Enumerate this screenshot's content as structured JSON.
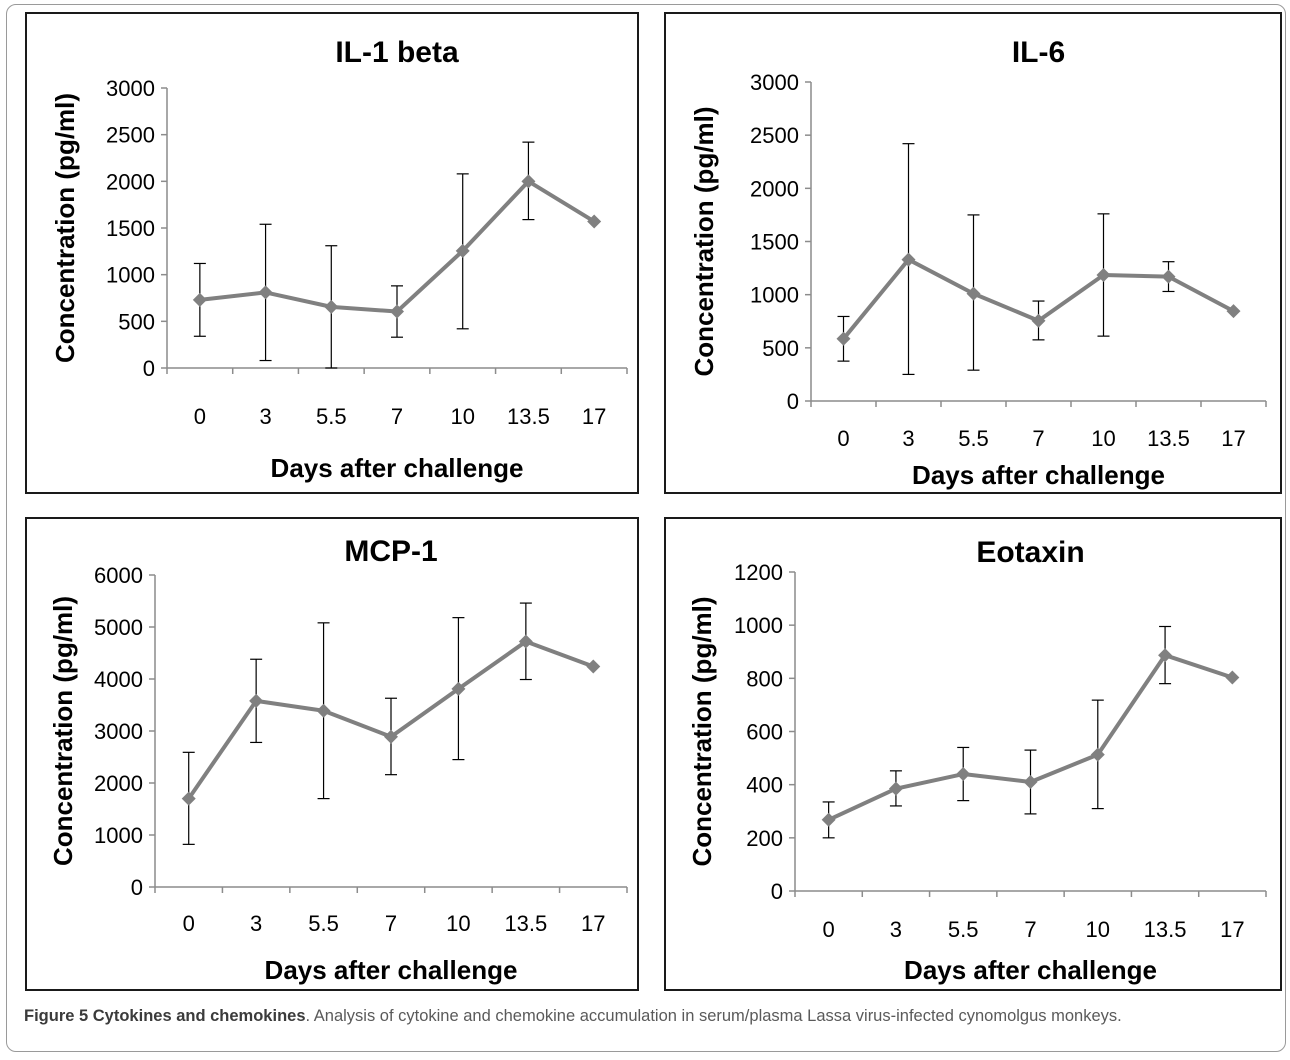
{
  "chart_data": [
    {
      "type": "line",
      "title": "IL-1 beta",
      "xlabel": "Days after challenge",
      "ylabel": "Concentration (pg/ml)",
      "categories": [
        "0",
        "3",
        "5.5",
        "7",
        "10",
        "13.5",
        "17"
      ],
      "ylim": [
        0,
        3000
      ],
      "yticks": [
        0,
        500,
        1000,
        1500,
        2000,
        2500,
        3000
      ],
      "series": [
        {
          "values": [
            730,
            810,
            655,
            605,
            1255,
            2000,
            1570
          ],
          "error_low": [
            340,
            80,
            0,
            330,
            420,
            1590,
            1570
          ],
          "error_high": [
            1120,
            1540,
            1310,
            880,
            2080,
            2420,
            1570
          ]
        }
      ],
      "line_color": "#808080",
      "grid": false
    },
    {
      "type": "line",
      "title": "IL-6",
      "xlabel": "Days after challenge",
      "ylabel": "Concentration (pg/ml)",
      "categories": [
        "0",
        "3",
        "5.5",
        "7",
        "10",
        "13.5",
        "17"
      ],
      "ylim": [
        0,
        3000
      ],
      "yticks": [
        0,
        500,
        1000,
        1500,
        2000,
        2500,
        3000
      ],
      "series": [
        {
          "values": [
            585,
            1330,
            1010,
            755,
            1185,
            1170,
            845
          ],
          "error_low": [
            375,
            250,
            290,
            575,
            610,
            1030,
            845
          ],
          "error_high": [
            795,
            2420,
            1750,
            940,
            1760,
            1310,
            845
          ]
        }
      ],
      "line_color": "#808080",
      "grid": false
    },
    {
      "type": "line",
      "title": "MCP-1",
      "xlabel": "Days after challenge",
      "ylabel": "Concentration (pg/ml)",
      "categories": [
        "0",
        "3",
        "5.5",
        "7",
        "10",
        "13.5",
        "17"
      ],
      "ylim": [
        0,
        6000
      ],
      "yticks": [
        0,
        1000,
        2000,
        3000,
        4000,
        5000,
        6000
      ],
      "series": [
        {
          "values": [
            1700,
            3580,
            3390,
            2890,
            3810,
            4720,
            4240
          ],
          "error_low": [
            820,
            2780,
            1700,
            2160,
            2450,
            3990,
            4240
          ],
          "error_high": [
            2590,
            4380,
            5080,
            3630,
            5180,
            5460,
            4240
          ]
        }
      ],
      "line_color": "#808080",
      "grid": false
    },
    {
      "type": "line",
      "title": "Eotaxin",
      "xlabel": "Days after challenge",
      "ylabel": "Concentration (pg/ml)",
      "categories": [
        "0",
        "3",
        "5.5",
        "7",
        "10",
        "13.5",
        "17"
      ],
      "ylim": [
        0,
        1200
      ],
      "yticks": [
        0,
        200,
        400,
        600,
        800,
        1000,
        1200
      ],
      "series": [
        {
          "values": [
            268,
            385,
            440,
            410,
            513,
            887,
            803
          ],
          "error_low": [
            200,
            320,
            340,
            290,
            310,
            780,
            803
          ],
          "error_high": [
            335,
            452,
            540,
            530,
            718,
            995,
            803
          ]
        }
      ],
      "line_color": "#808080",
      "grid": false
    }
  ],
  "caption": {
    "label": "Figure 5 Cytokines and chemokines",
    "text": ". Analysis of cytokine and chemokine accumulation in serum/plasma Lassa virus-infected cynomolgus monkeys."
  }
}
